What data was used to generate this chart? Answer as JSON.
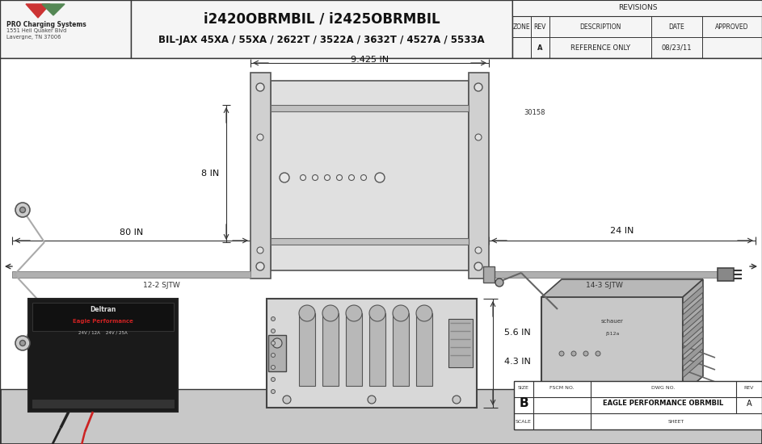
{
  "bg_color": "#c8c8c8",
  "draw_bg": "#f0f0f0",
  "header_bg": "#f5f5f5",
  "title_line1": "i2420OBRMBIL / i2425OBRMBIL",
  "title_line2": "BIL-JAX 45XA / 55XA / 2622T / 3522A / 3632T / 4527A / 5533A",
  "company_name": "PRO Charging Systems",
  "company_addr1": "1551 Heil Quaker Blvd",
  "company_addr2": "Lavergne, TN 37006",
  "rev_header": "REVISIONS",
  "zone_label": "ZONE",
  "rev_label": "REV",
  "desc_label": "DESCRIPTION",
  "date_label": "DATE",
  "approved_label": "APPROVED",
  "rev_row_rev": "A",
  "rev_row_desc": "REFERENCE ONLY",
  "rev_row_date": "08/23/11",
  "dim_9425": "9.425 IN",
  "dim_8in": "8 IN",
  "dim_80in": "80 IN",
  "dim_24in": "24 IN",
  "dim_56in": "5.6 IN",
  "dim_43in": "4.3 IN",
  "label_12_2": "12-2 SJTW",
  "label_14_3": "14-3 SJTW",
  "label_30158": "30158",
  "size_label": "SIZE",
  "size_val": "B",
  "fscm_label": "FSCM NO.",
  "dwg_label": "DWG NO.",
  "dwg_val": "EAGLE PERFORMANCE OBRMBIL",
  "rev_label2": "REV",
  "rev_val": "A",
  "scale_label": "SCALE",
  "sheet_label": "SHEET"
}
